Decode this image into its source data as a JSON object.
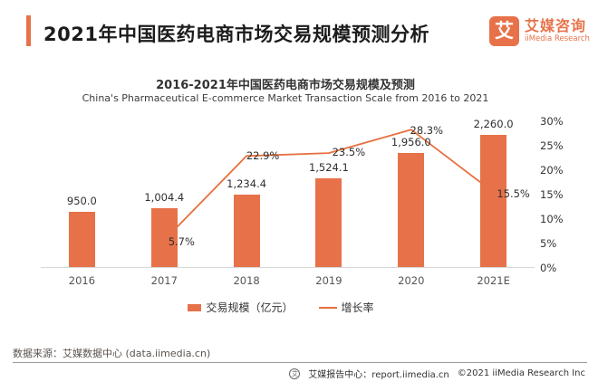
{
  "header": {
    "title": "2021年中国医药电商市场交易规模预测分析",
    "brand": {
      "logo_glyph": "艾",
      "name_cn": "艾媒咨询",
      "name_en": "iiMedia Research",
      "color": "#E7724A"
    }
  },
  "chart_data": {
    "type": "bar",
    "title": "2016-2021年中国医药电商市场交易规模及预测",
    "subtitle": "China's Pharmaceutical E-commerce Market Transaction Scale from 2016 to 2021",
    "categories": [
      "2016",
      "2017",
      "2018",
      "2019",
      "2020",
      "2021E"
    ],
    "series": [
      {
        "name": "交易规模（亿元）",
        "type": "bar",
        "values": [
          950.0,
          1004.4,
          1234.4,
          1524.1,
          1956.0,
          2260.0
        ],
        "labels": [
          "950.0",
          "1,004.4",
          "1,234.4",
          "1,524.1",
          "1,956.0",
          "2,260.0"
        ],
        "color": "#E77249"
      },
      {
        "name": "增长率",
        "type": "line",
        "axis": "right",
        "values": [
          null,
          5.7,
          22.9,
          23.5,
          28.3,
          15.5
        ],
        "labels": [
          null,
          "5.7%",
          "22.9%",
          "23.5%",
          "28.3%",
          "15.5%"
        ],
        "color": "#E7703F"
      }
    ],
    "yaxis_right": {
      "ticks": [
        "0%",
        "5%",
        "10%",
        "15%",
        "20%",
        "25%",
        "30%"
      ],
      "min": 0,
      "max": 30
    },
    "grid": false,
    "legend_position": "bottom"
  },
  "footer": {
    "source": "数据来源：艾媒数据中心 (data.iimedia.cn)",
    "report_center": "艾媒报告中心：report.iimedia.cn",
    "copyright": "©2021  iiMedia Research  Inc",
    "icon_glyph": "艾"
  }
}
